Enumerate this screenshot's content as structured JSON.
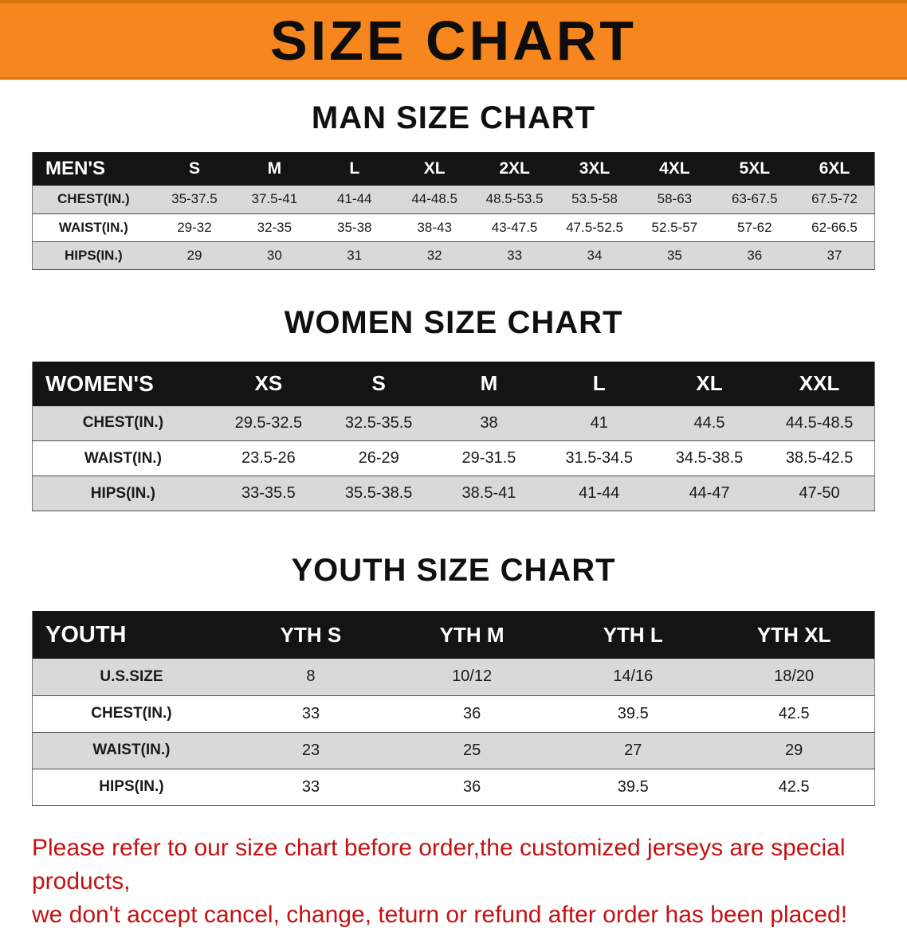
{
  "banner": {
    "title": "SIZE CHART"
  },
  "colors": {
    "banner_bg": "#f6861d",
    "banner_edge": "#d9730f",
    "header_bg": "#141414",
    "row_stripe": "#d9d9d9",
    "footer_red": "#c41212"
  },
  "sections": [
    {
      "id": "men",
      "heading": "MAN SIZE CHART",
      "header": [
        "MEN'S",
        "S",
        "M",
        "L",
        "XL",
        "2XL",
        "3XL",
        "4XL",
        "5XL",
        "6XL"
      ],
      "rows": [
        [
          "CHEST(IN.)",
          "35-37.5",
          "37.5-41",
          "41-44",
          "44-48.5",
          "48.5-53.5",
          "53.5-58",
          "58-63",
          "63-67.5",
          "67.5-72"
        ],
        [
          "WAIST(IN.)",
          "29-32",
          "32-35",
          "35-38",
          "38-43",
          "43-47.5",
          "47.5-52.5",
          "52.5-57",
          "57-62",
          "62-66.5"
        ],
        [
          "HIPS(IN.)",
          "29",
          "30",
          "31",
          "32",
          "33",
          "34",
          "35",
          "36",
          "37"
        ]
      ]
    },
    {
      "id": "women",
      "heading": "WOMEN SIZE CHART",
      "header": [
        "WOMEN'S",
        "XS",
        "S",
        "M",
        "L",
        "XL",
        "XXL"
      ],
      "rows": [
        [
          "CHEST(IN.)",
          "29.5-32.5",
          "32.5-35.5",
          "38",
          "41",
          "44.5",
          "44.5-48.5"
        ],
        [
          "WAIST(IN.)",
          "23.5-26",
          "26-29",
          "29-31.5",
          "31.5-34.5",
          "34.5-38.5",
          "38.5-42.5"
        ],
        [
          "HIPS(IN.)",
          "33-35.5",
          "35.5-38.5",
          "38.5-41",
          "41-44",
          "44-47",
          "47-50"
        ]
      ]
    },
    {
      "id": "youth",
      "heading": "YOUTH SIZE CHART",
      "header": [
        "YOUTH",
        "YTH S",
        "YTH M",
        "YTH L",
        "YTH XL"
      ],
      "rows": [
        [
          "U.S.SIZE",
          "8",
          "10/12",
          "14/16",
          "18/20"
        ],
        [
          "CHEST(IN.)",
          "33",
          "36",
          "39.5",
          "42.5"
        ],
        [
          "WAIST(IN.)",
          "23",
          "25",
          "27",
          "29"
        ],
        [
          "HIPS(IN.)",
          "33",
          "36",
          "39.5",
          "42.5"
        ]
      ]
    }
  ],
  "footer": {
    "line1": "Please refer to our size chart before order,the customized jerseys are special products,",
    "line2": "we don't accept cancel, change, teturn or refund after order has been placed!"
  }
}
